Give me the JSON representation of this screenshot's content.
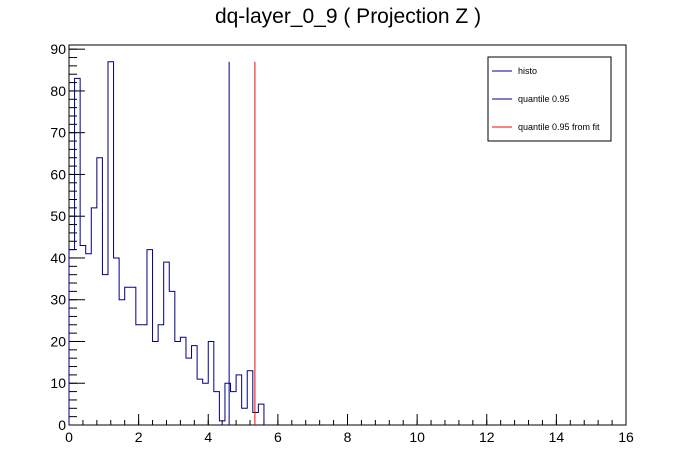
{
  "chart_data": {
    "type": "histogram",
    "title": "dq-layer_0_9 ( Projection Z )",
    "xlabel": "",
    "ylabel": "",
    "xlim": [
      0,
      16
    ],
    "ylim": [
      0,
      91
    ],
    "x_ticks": [
      "0",
      "2",
      "4",
      "6",
      "8",
      "10",
      "12",
      "14",
      "16"
    ],
    "y_ticks": [
      "0",
      "10",
      "20",
      "30",
      "40",
      "50",
      "60",
      "70",
      "80",
      "90"
    ],
    "grid": false,
    "legend_position": "top-right",
    "bin_width": 0.16,
    "series": [
      {
        "name": "histo",
        "color": "#000080",
        "bin_start": 0,
        "values": [
          42,
          83,
          43,
          41,
          52,
          64,
          36,
          87,
          40,
          30,
          33,
          33,
          24,
          24,
          42,
          20,
          24,
          39,
          32,
          20,
          21,
          16,
          19,
          11,
          10,
          20,
          8,
          1,
          10,
          8,
          12,
          4,
          13,
          3,
          5
        ]
      }
    ],
    "vlines": [
      {
        "name": "quantile 0.95",
        "x": 4.6,
        "y_top": 87,
        "color": "#000080"
      },
      {
        "name": "quantile 0.95 from fit",
        "x": 5.34,
        "y_top": 87,
        "color": "#ff0000"
      }
    ]
  }
}
